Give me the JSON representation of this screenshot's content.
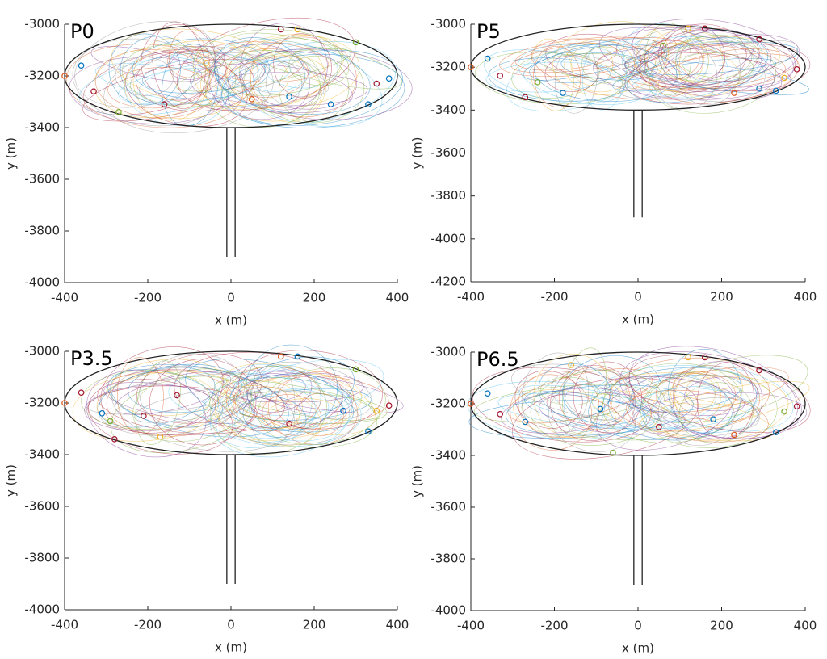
{
  "chart_data": [
    {
      "type": "scatter",
      "title": "P0",
      "x_label": "x (m)",
      "y_label": "y (m)",
      "xlim": [
        -400,
        400
      ],
      "ylim": [
        -4000,
        -3000
      ],
      "xticks": [
        -400,
        -200,
        0,
        200,
        400
      ],
      "yticks": [
        -4000,
        -3800,
        -3600,
        -3400,
        -3200,
        -3000
      ],
      "boundary": {
        "cx": 0,
        "cy": -3200,
        "rx": 400,
        "ry": 200,
        "channel_x": [
          -10,
          10
        ],
        "channel_bottom": -3900
      },
      "series": [
        {
          "color": "#0072bd",
          "x": [
            -360,
            380,
            330,
            240,
            140
          ],
          "y": [
            -3160,
            -3210,
            -3310,
            -3310,
            -3280
          ]
        },
        {
          "color": "#a2142f",
          "x": [
            -330,
            120,
            350,
            -160
          ],
          "y": [
            -3260,
            -3020,
            -3230,
            -3310
          ]
        },
        {
          "color": "#d95319",
          "x": [
            -400,
            50
          ],
          "y": [
            -3200,
            -3290
          ]
        },
        {
          "color": "#edb120",
          "x": [
            160,
            -60
          ],
          "y": [
            -3020,
            -3150
          ]
        },
        {
          "color": "#77ac30",
          "x": [
            -270,
            300
          ],
          "y": [
            -3340,
            -3070
          ]
        }
      ]
    },
    {
      "type": "scatter",
      "title": "P5",
      "x_label": "x (m)",
      "y_label": "y (m)",
      "xlim": [
        -400,
        400
      ],
      "ylim": [
        -4200,
        -3000
      ],
      "xticks": [
        -400,
        -200,
        0,
        200,
        400
      ],
      "yticks": [
        -4200,
        -4000,
        -3800,
        -3600,
        -3400,
        -3200,
        -3000
      ],
      "boundary": {
        "cx": 0,
        "cy": -3200,
        "rx": 400,
        "ry": 200,
        "channel_x": [
          -10,
          10
        ],
        "channel_bottom": -3900
      },
      "series": [
        {
          "color": "#0072bd",
          "x": [
            -360,
            330,
            290,
            -180
          ],
          "y": [
            -3160,
            -3310,
            -3300,
            -3320
          ]
        },
        {
          "color": "#a2142f",
          "x": [
            -330,
            380,
            160,
            290,
            -270
          ],
          "y": [
            -3240,
            -3210,
            -3020,
            -3070,
            -3340
          ]
        },
        {
          "color": "#d95319",
          "x": [
            -400,
            230
          ],
          "y": [
            -3200,
            -3320
          ]
        },
        {
          "color": "#edb120",
          "x": [
            120,
            350
          ],
          "y": [
            -3020,
            -3250
          ]
        },
        {
          "color": "#77ac30",
          "x": [
            -240,
            60
          ],
          "y": [
            -3270,
            -3100
          ]
        }
      ]
    },
    {
      "type": "scatter",
      "title": "P3.5",
      "x_label": "x (m)",
      "y_label": "y (m)",
      "xlim": [
        -400,
        400
      ],
      "ylim": [
        -4000,
        -3000
      ],
      "xticks": [
        -400,
        -200,
        0,
        200,
        400
      ],
      "yticks": [
        -4000,
        -3800,
        -3600,
        -3400,
        -3200,
        -3000
      ],
      "boundary": {
        "cx": 0,
        "cy": -3200,
        "rx": 400,
        "ry": 200,
        "channel_x": [
          -10,
          10
        ],
        "channel_bottom": -3900
      },
      "series": [
        {
          "color": "#0072bd",
          "x": [
            -310,
            160,
            270,
            330
          ],
          "y": [
            -3240,
            -3020,
            -3230,
            -3310
          ]
        },
        {
          "color": "#a2142f",
          "x": [
            -360,
            -280,
            380,
            -130,
            140,
            -210
          ],
          "y": [
            -3160,
            -3340,
            -3210,
            -3170,
            -3280,
            -3250
          ]
        },
        {
          "color": "#d95319",
          "x": [
            -400,
            120
          ],
          "y": [
            -3200,
            -3020
          ]
        },
        {
          "color": "#edb120",
          "x": [
            350,
            -170
          ],
          "y": [
            -3230,
            -3330
          ]
        },
        {
          "color": "#77ac30",
          "x": [
            -290,
            300
          ],
          "y": [
            -3270,
            -3070
          ]
        }
      ]
    },
    {
      "type": "scatter",
      "title": "P6.5",
      "x_label": "x (m)",
      "y_label": "y (m)",
      "xlim": [
        -400,
        400
      ],
      "ylim": [
        -4000,
        -3000
      ],
      "xticks": [
        -400,
        -200,
        0,
        200,
        400
      ],
      "yticks": [
        -4000,
        -3800,
        -3600,
        -3400,
        -3200,
        -3000
      ],
      "boundary": {
        "cx": 0,
        "cy": -3200,
        "rx": 400,
        "ry": 200,
        "channel_x": [
          -10,
          10
        ],
        "channel_bottom": -3900
      },
      "series": [
        {
          "color": "#0072bd",
          "x": [
            -360,
            -90,
            180,
            330,
            -270
          ],
          "y": [
            -3160,
            -3220,
            -3260,
            -3310,
            -3270
          ]
        },
        {
          "color": "#a2142f",
          "x": [
            380,
            160,
            290,
            -330,
            50
          ],
          "y": [
            -3210,
            -3020,
            -3070,
            -3240,
            -3290
          ]
        },
        {
          "color": "#d95319",
          "x": [
            -400,
            230
          ],
          "y": [
            -3200,
            -3320
          ]
        },
        {
          "color": "#edb120",
          "x": [
            120,
            -160
          ],
          "y": [
            -3020,
            -3050
          ]
        },
        {
          "color": "#77ac30",
          "x": [
            350,
            -60
          ],
          "y": [
            -3230,
            -3390
          ]
        }
      ]
    }
  ]
}
